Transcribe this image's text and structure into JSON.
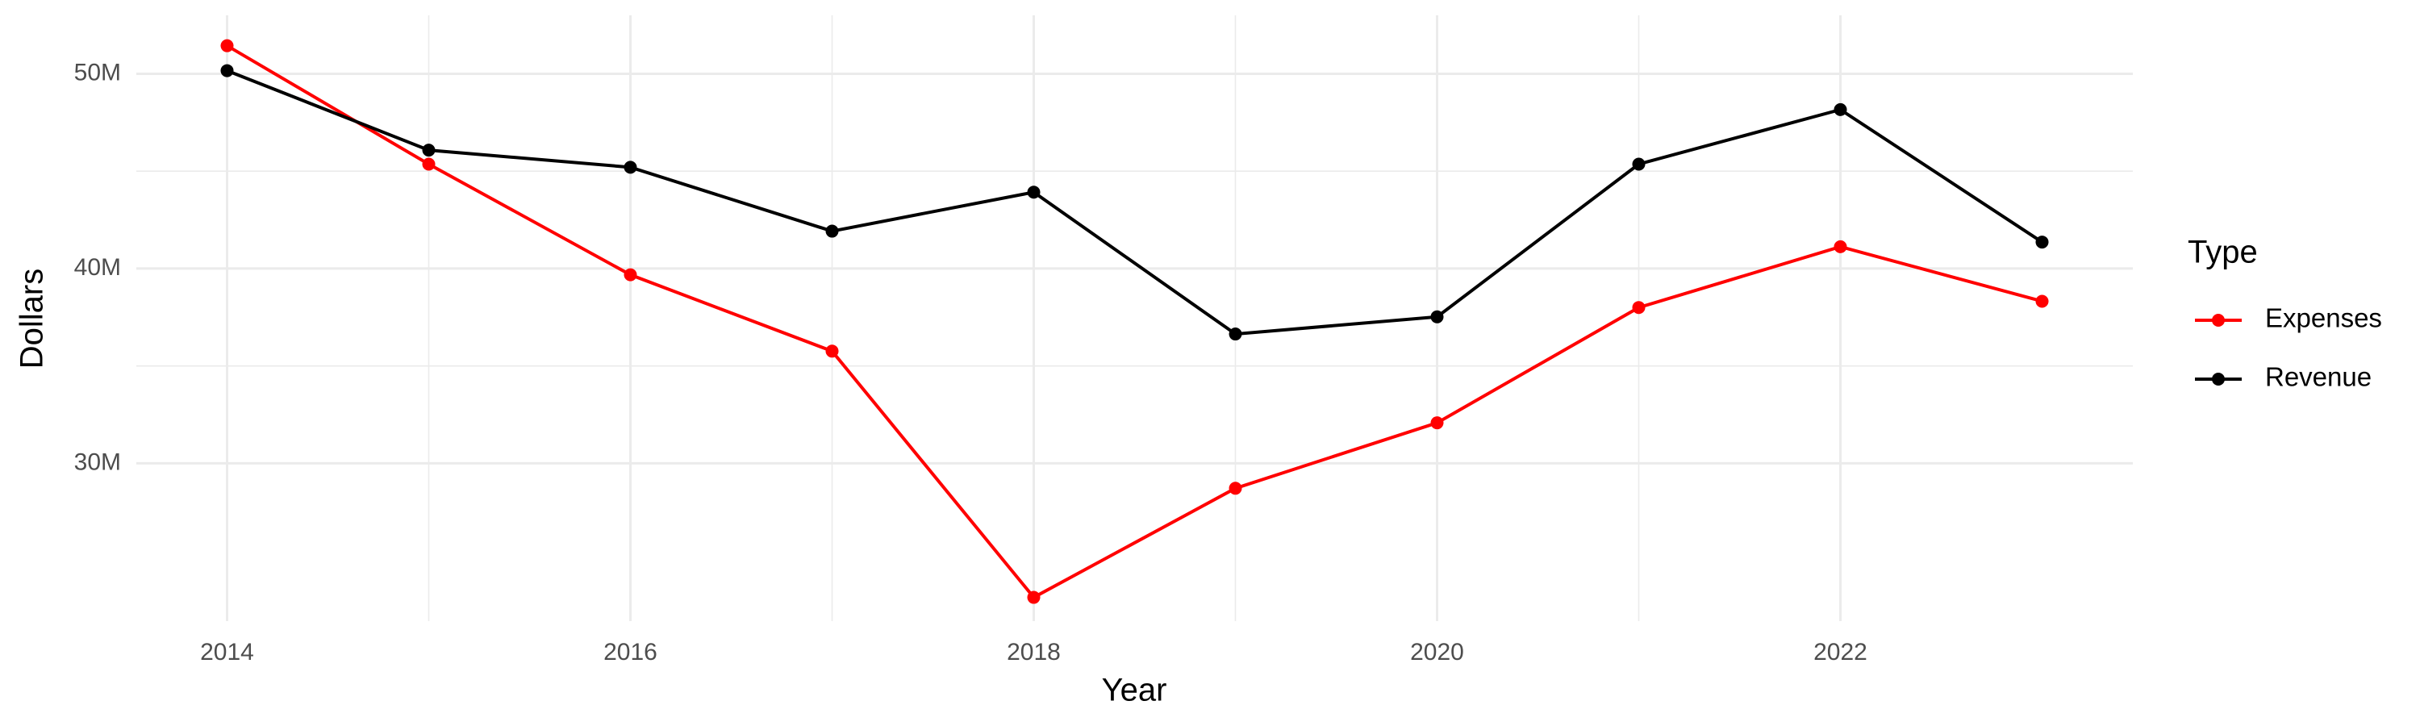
{
  "chart_data": {
    "type": "line",
    "x_label": "Year",
    "y_label": "Dollars",
    "legend_title": "Type",
    "x": [
      2014,
      2015,
      2016,
      2017,
      2018,
      2019,
      2020,
      2021,
      2022,
      2023
    ],
    "series": [
      {
        "name": "Expenses",
        "color": "#ff0000",
        "values": [
          51440000,
          45360000,
          39680000,
          35760000,
          23120000,
          28720000,
          32080000,
          38000000,
          41120000,
          38320000
        ]
      },
      {
        "name": "Revenue",
        "color": "#000000",
        "values": [
          50160000,
          46080000,
          45200000,
          41920000,
          43920000,
          36640000,
          37520000,
          45360000,
          48160000,
          41360000
        ]
      }
    ],
    "xlim": [
      2013.55,
      2023.45
    ],
    "xticks": [
      2014,
      2016,
      2018,
      2020,
      2022
    ],
    "ylim": [
      21900000,
      53000000
    ],
    "yticks": [
      {
        "value": 30000000,
        "label": "30M"
      },
      {
        "value": 40000000,
        "label": "40M"
      },
      {
        "value": 50000000,
        "label": "50M"
      }
    ],
    "grid": true,
    "legend_position": "right"
  }
}
